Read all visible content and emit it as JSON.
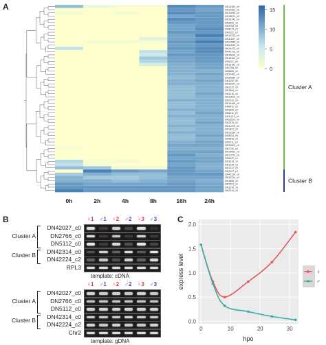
{
  "panels": [
    "A",
    "B",
    "C"
  ],
  "heatmap": {
    "timepoints": [
      "0h",
      "2h",
      "4h",
      "8h",
      "16h",
      "24h"
    ],
    "colorbar_ticks": [
      "15",
      "10",
      "5",
      "0"
    ],
    "clusters": [
      {
        "label": "Cluster A",
        "color": "#6cc04a"
      },
      {
        "label": "Cluster B",
        "color": "#2b3d8f"
      }
    ],
    "genes": [
      "DN13352_c0",
      "DN17821_c0",
      "DN70005_c0",
      "DN15874_c0",
      "DN78742_c0",
      "DN6562_c0",
      "DN5783_c0",
      "DN8273_c1",
      "DN9112_c0",
      "DN12213_c0",
      "DN11847_c0",
      "DN17895_c0",
      "DN11632_c0",
      "DN14473_c0",
      "DN41712_c0",
      "DN15810_c0",
      "DN16113_c0",
      "DN5112_c0",
      "DN15782_c0",
      "DN2766_c0",
      "DN6803_c0",
      "DN37401_c0",
      "DN39955_c0",
      "DN3152_c0",
      "DN42027_c0",
      "DN1237_c0",
      "DN7654_c0",
      "DN3210_c0",
      "DN11542_c0",
      "DN2231_c0",
      "DN14440_c0",
      "DN6612_c0",
      "DN3209_c0",
      "DN6211_c0",
      "DN11211_c0",
      "DN51103_c0",
      "DN2315_c0",
      "DN11725_c0",
      "DN1821_c0",
      "DN13330_c0",
      "DN5551_c0",
      "DN9843_c0",
      "DN2211_c0",
      "DN31520_c0",
      "DN2752_c0",
      "DN14002_c0",
      "DN17572_c0",
      "DN5437_c1",
      "DN3313_c0",
      "DN1234_c0",
      "DN7217_c0",
      "DN2327_c0",
      "DN42314_c0",
      "DN42224_c2",
      "DN1884_c0",
      "DN7221_c0",
      "DN3130_c0",
      "DN2314_c0"
    ],
    "values": [
      [
        9,
        2,
        1,
        1,
        13,
        12
      ],
      [
        0,
        0,
        0,
        0,
        12,
        11
      ],
      [
        1,
        0,
        1,
        0,
        13,
        12
      ],
      [
        0,
        0,
        0,
        0,
        11,
        12
      ],
      [
        0,
        0,
        0,
        0,
        13,
        12
      ],
      [
        0,
        0,
        0,
        0,
        12,
        12
      ],
      [
        0,
        0,
        0,
        0,
        11,
        12
      ],
      [
        0,
        0,
        0,
        0,
        11,
        13
      ],
      [
        0,
        0,
        0,
        0,
        12,
        12
      ],
      [
        0,
        0,
        0,
        0,
        11,
        14
      ],
      [
        0,
        0,
        0,
        3,
        11,
        12
      ],
      [
        0,
        1,
        1,
        1,
        12,
        14
      ],
      [
        0,
        0,
        0,
        0,
        11,
        12
      ],
      [
        6,
        0,
        0,
        0,
        12,
        13
      ],
      [
        0,
        0,
        0,
        6,
        11,
        13
      ],
      [
        0,
        0,
        0,
        5,
        12,
        12
      ],
      [
        0,
        0,
        0,
        8,
        11,
        12
      ],
      [
        0,
        0,
        0,
        7,
        11,
        12
      ],
      [
        0,
        0,
        0,
        4,
        10,
        11
      ],
      [
        0,
        0,
        0,
        0,
        10,
        11
      ],
      [
        0,
        0,
        0,
        0,
        10,
        10
      ],
      [
        0,
        0,
        0,
        0,
        10,
        11
      ],
      [
        0,
        0,
        0,
        0,
        9,
        10
      ],
      [
        0,
        0,
        0,
        0,
        10,
        11
      ],
      [
        0,
        0,
        0,
        0,
        10,
        10
      ],
      [
        0,
        0,
        0,
        0,
        9,
        10
      ],
      [
        0,
        0,
        0,
        0,
        9,
        10
      ],
      [
        0,
        0,
        0,
        0,
        9,
        11
      ],
      [
        0,
        0,
        0,
        0,
        9,
        10
      ],
      [
        0,
        0,
        0,
        0,
        10,
        10
      ],
      [
        0,
        0,
        0,
        0,
        9,
        10
      ],
      [
        0,
        0,
        0,
        0,
        9,
        10
      ],
      [
        0,
        0,
        0,
        0,
        10,
        10
      ],
      [
        0,
        0,
        0,
        0,
        9,
        11
      ],
      [
        0,
        0,
        0,
        0,
        10,
        10
      ],
      [
        0,
        0,
        0,
        0,
        9,
        10
      ],
      [
        0,
        0,
        0,
        0,
        9,
        11
      ],
      [
        0,
        0,
        0,
        0,
        10,
        10
      ],
      [
        0,
        0,
        0,
        0,
        9,
        10
      ],
      [
        0,
        0,
        0,
        0,
        10,
        10
      ],
      [
        0,
        0,
        0,
        0,
        9,
        11
      ],
      [
        0,
        0,
        0,
        0,
        9,
        10
      ],
      [
        0,
        0,
        0,
        0,
        10,
        11
      ],
      [
        0,
        0,
        0,
        0,
        11,
        11
      ],
      [
        1,
        0,
        0,
        0,
        10,
        10
      ],
      [
        0,
        0,
        0,
        0,
        11,
        11
      ],
      [
        0,
        0,
        0,
        0,
        12,
        10
      ],
      [
        0,
        0,
        0,
        0,
        11,
        11
      ],
      [
        7,
        1,
        1,
        0,
        12,
        11
      ],
      [
        6,
        1,
        0,
        0,
        11,
        10
      ],
      [
        9,
        8,
        1,
        1,
        12,
        10
      ],
      [
        0,
        14,
        12,
        11,
        12,
        11
      ],
      [
        8,
        10,
        9,
        9,
        12,
        12
      ],
      [
        10,
        8,
        8,
        9,
        11,
        11
      ],
      [
        10,
        10,
        9,
        10,
        11,
        10
      ],
      [
        12,
        11,
        11,
        11,
        12,
        11
      ],
      [
        12,
        12,
        12,
        12,
        12,
        11
      ],
      [
        14,
        12,
        12,
        12,
        12,
        11
      ]
    ]
  },
  "gel_cdna": {
    "lanes": [
      {
        "sym": "♀1",
        "color": "#e03c3c"
      },
      {
        "sym": "♂1",
        "color": "#3c56b8"
      },
      {
        "sym": "♀2",
        "color": "#e03c3c"
      },
      {
        "sym": "♂2",
        "color": "#3c56b8"
      },
      {
        "sym": "♀3",
        "color": "#e03c3c"
      },
      {
        "sym": "♂3",
        "color": "#3c56b8"
      }
    ],
    "rows": [
      "DN42027_c0",
      "DN2766_c0",
      "DN5112_c0",
      "DN42314_c0",
      "DN42224_c2",
      "RPL3"
    ],
    "intensity": [
      [
        0.9,
        0.1,
        0.85,
        0.15,
        0.9,
        0.05
      ],
      [
        0.9,
        0.1,
        0.8,
        0.1,
        0.85,
        0.1
      ],
      [
        0.95,
        0.1,
        0.9,
        0.2,
        0.95,
        0.15
      ],
      [
        0.2,
        0.85,
        0.3,
        0.9,
        0.25,
        0.95
      ],
      [
        0.3,
        0.8,
        0.2,
        0.85,
        0.3,
        0.9
      ],
      [
        0.9,
        0.9,
        0.9,
        0.9,
        0.9,
        0.9
      ]
    ],
    "template_label": "template: cDNA"
  },
  "gel_gdna": {
    "lanes": [
      {
        "sym": "♀1",
        "color": "#e03c3c"
      },
      {
        "sym": "♂1",
        "color": "#3c56b8"
      },
      {
        "sym": "♀2",
        "color": "#e03c3c"
      },
      {
        "sym": "♂2",
        "color": "#3c56b8"
      },
      {
        "sym": "♀3",
        "color": "#e03c3c"
      },
      {
        "sym": "♂3",
        "color": "#3c56b8"
      }
    ],
    "rows": [
      "DN42027_c0",
      "DN2766_c0",
      "DN5112_c0",
      "DN42314_c0",
      "DN42224_c2",
      "Chr2"
    ],
    "intensity": [
      [
        0.85,
        0.8,
        0.85,
        0.8,
        0.85,
        0.8
      ],
      [
        0.8,
        0.8,
        0.8,
        0.8,
        0.8,
        0.8
      ],
      [
        0.85,
        0.85,
        0.85,
        0.85,
        0.85,
        0.85
      ],
      [
        0.8,
        0.8,
        0.8,
        0.85,
        0.8,
        0.8
      ],
      [
        0.85,
        0.8,
        0.85,
        0.8,
        0.8,
        0.85
      ],
      [
        0.9,
        0.9,
        0.9,
        0.9,
        0.9,
        0.9
      ]
    ],
    "template_label": "template: gDNA"
  },
  "clusters_gel": [
    "Cluster A",
    "Cluster B"
  ],
  "chart_data": {
    "type": "line",
    "xlabel": "hpo",
    "ylabel": "express level",
    "xlim": [
      -1,
      33
    ],
    "ylim": [
      -0.05,
      2.1
    ],
    "xticks": [
      0,
      10,
      20,
      30
    ],
    "yticks": [
      0.0,
      0.5,
      1.0,
      1.5,
      2.0
    ],
    "legend_placement": "right",
    "series": [
      {
        "name": "♀",
        "color": "#e8545a",
        "x": [
          0,
          4,
          8,
          16,
          24,
          32
        ],
        "y": [
          1.58,
          0.82,
          0.5,
          0.82,
          1.22,
          1.84
        ]
      },
      {
        "name": "♂",
        "color": "#3aada8",
        "x": [
          0,
          4,
          8,
          16,
          24,
          32
        ],
        "y": [
          1.58,
          0.78,
          0.32,
          0.2,
          0.1,
          0.03
        ]
      }
    ]
  }
}
